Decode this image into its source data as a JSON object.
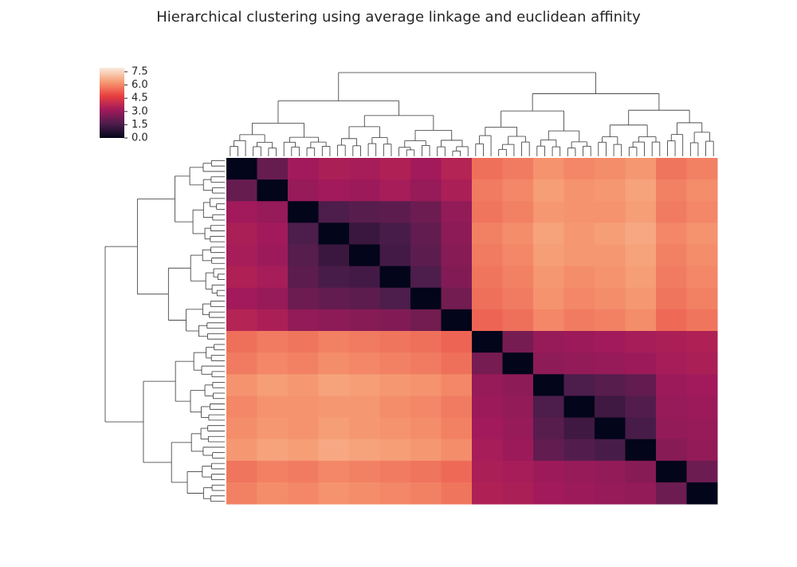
{
  "chart_data": {
    "type": "heatmap",
    "title": "Hierarchical clustering using average linkage and euclidean affinity",
    "x": [
      null,
      null,
      null,
      null,
      null,
      null,
      null,
      null,
      null,
      null,
      null,
      null,
      null,
      null,
      null,
      null
    ],
    "y": [
      null,
      null,
      null,
      null,
      null,
      null,
      null,
      null,
      null,
      null,
      null,
      null,
      null,
      null,
      null,
      null
    ],
    "values": [
      [
        0,
        2.1,
        3.2,
        3.4,
        3.3,
        3.5,
        3.2,
        3.6,
        5.6,
        5.8,
        6.2,
        6.0,
        6.1,
        6.3,
        5.7,
        5.9
      ],
      [
        2.1,
        0,
        3.0,
        3.2,
        3.1,
        3.3,
        3.0,
        3.4,
        5.8,
        6.0,
        6.4,
        6.2,
        6.3,
        6.5,
        5.9,
        6.1
      ],
      [
        3.2,
        3.0,
        0,
        1.6,
        1.8,
        1.9,
        2.2,
        2.9,
        5.7,
        5.9,
        6.3,
        6.2,
        6.2,
        6.4,
        5.8,
        6.0
      ],
      [
        3.4,
        3.2,
        1.6,
        0,
        1.2,
        1.5,
        2.0,
        2.8,
        5.9,
        6.1,
        6.5,
        6.3,
        6.4,
        6.6,
        6.0,
        6.2
      ],
      [
        3.3,
        3.1,
        1.8,
        1.2,
        0,
        1.4,
        1.9,
        2.7,
        5.8,
        6.0,
        6.4,
        6.3,
        6.3,
        6.5,
        5.9,
        6.1
      ],
      [
        3.5,
        3.3,
        1.9,
        1.5,
        1.4,
        0,
        1.6,
        2.6,
        5.7,
        5.9,
        6.3,
        6.1,
        6.2,
        6.4,
        5.8,
        6.0
      ],
      [
        3.2,
        3.0,
        2.2,
        2.0,
        1.9,
        1.6,
        0,
        2.3,
        5.6,
        5.8,
        6.2,
        6.0,
        6.1,
        6.3,
        5.7,
        5.9
      ],
      [
        3.6,
        3.4,
        2.9,
        2.8,
        2.7,
        2.6,
        2.3,
        0,
        5.4,
        5.6,
        6.0,
        5.8,
        5.9,
        6.1,
        5.5,
        5.7
      ],
      [
        5.6,
        5.8,
        5.7,
        5.9,
        5.8,
        5.7,
        5.6,
        5.4,
        0,
        2.4,
        3.0,
        3.1,
        3.2,
        3.3,
        3.4,
        3.5
      ],
      [
        5.8,
        6.0,
        5.9,
        6.1,
        6.0,
        5.9,
        5.8,
        5.6,
        2.4,
        0,
        2.8,
        2.9,
        3.0,
        3.1,
        3.3,
        3.4
      ],
      [
        6.2,
        6.4,
        6.3,
        6.5,
        6.4,
        6.3,
        6.2,
        6.0,
        3.0,
        2.8,
        0,
        1.6,
        1.8,
        2.0,
        3.1,
        3.2
      ],
      [
        6.0,
        6.2,
        6.2,
        6.3,
        6.3,
        6.1,
        6.0,
        5.8,
        3.1,
        2.9,
        1.6,
        0,
        1.3,
        1.7,
        3.0,
        3.1
      ],
      [
        6.1,
        6.3,
        6.2,
        6.4,
        6.3,
        6.2,
        6.1,
        5.9,
        3.2,
        3.0,
        1.8,
        1.3,
        0,
        1.5,
        2.9,
        3.0
      ],
      [
        6.3,
        6.5,
        6.4,
        6.6,
        6.5,
        6.4,
        6.3,
        6.1,
        3.3,
        3.1,
        2.0,
        1.7,
        1.5,
        0,
        2.7,
        2.9
      ],
      [
        5.7,
        5.9,
        5.8,
        6.0,
        5.9,
        5.8,
        5.7,
        5.5,
        3.4,
        3.3,
        3.1,
        3.0,
        2.9,
        2.7,
        0,
        2.2
      ],
      [
        5.9,
        6.1,
        6.0,
        6.2,
        6.1,
        6.0,
        5.9,
        5.7,
        3.5,
        3.4,
        3.2,
        3.1,
        3.0,
        2.9,
        2.2,
        0
      ]
    ],
    "colors": [
      "#03051a",
      "#4c1d4b",
      "#a11a5b",
      "#e83f3f",
      "#f69c73",
      "#faebdd"
    ],
    "clim": [
      0,
      7.95
    ],
    "cticks": [
      {
        "value": 0,
        "label": "0.0"
      },
      1.5,
      {
        "value": 3,
        "label": "3.0"
      },
      4.5,
      {
        "value": 6,
        "label": "6.0"
      },
      7.5
    ]
  }
}
